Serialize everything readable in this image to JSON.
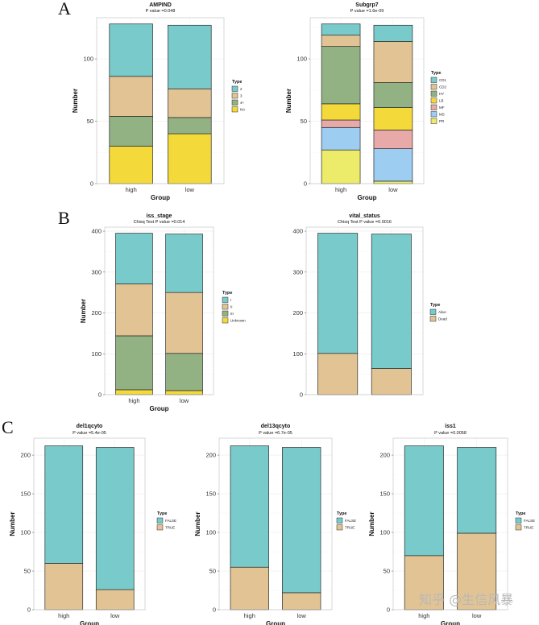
{
  "panels": [
    "A",
    "B",
    "C"
  ],
  "colors": {
    "teal": "#79CBCB",
    "tan": "#E2C494",
    "sage": "#93B283",
    "yellow": "#F3D93A",
    "pink": "#E8A9A9",
    "blue": "#9ECDF2",
    "lightyellow": "#ECEB6A",
    "grid": "#ececec",
    "border": "#444444"
  },
  "watermark": "知乎 @生信风暴",
  "chart_data": [
    {
      "type": "bar",
      "stacked": true,
      "panel": "A",
      "title": "AMPIND",
      "subtitle": "P value =0.048",
      "xlabel": "Group",
      "ylabel": "Number",
      "categories": [
        "high",
        "low"
      ],
      "ylim": [
        0,
        133
      ],
      "yticks": [
        0,
        50,
        100
      ],
      "legend_title": "Type",
      "series": [
        {
          "name": "NA",
          "color": "#F3D93A",
          "values": [
            30,
            40
          ]
        },
        {
          "name": "4+",
          "color": "#93B283",
          "values": [
            24,
            13
          ]
        },
        {
          "name": "3",
          "color": "#E2C494",
          "values": [
            32,
            23
          ]
        },
        {
          "name": "2",
          "color": "#79CBCB",
          "values": [
            42,
            51
          ]
        }
      ]
    },
    {
      "type": "bar",
      "stacked": true,
      "panel": "A",
      "title": "Subgrp7",
      "subtitle": "P value =1.6e-09",
      "xlabel": "Group",
      "ylabel": "Number",
      "categories": [
        "high",
        "low"
      ],
      "ylim": [
        0,
        133
      ],
      "yticks": [
        0,
        50,
        100
      ],
      "legend_title": "Type",
      "series": [
        {
          "name": "PR",
          "color": "#ECEB6A",
          "values": [
            27,
            2
          ]
        },
        {
          "name": "MS",
          "color": "#9ECDF2",
          "values": [
            18,
            26
          ]
        },
        {
          "name": "MF",
          "color": "#E8A9A9",
          "values": [
            6,
            15
          ]
        },
        {
          "name": "LB",
          "color": "#F3D93A",
          "values": [
            13,
            18
          ]
        },
        {
          "name": "HY",
          "color": "#93B283",
          "values": [
            46,
            20
          ]
        },
        {
          "name": "CD2",
          "color": "#E2C494",
          "values": [
            9,
            33
          ]
        },
        {
          "name": "CD1",
          "color": "#79CBCB",
          "values": [
            9,
            13
          ]
        }
      ]
    },
    {
      "type": "bar",
      "stacked": true,
      "panel": "B",
      "title": "iss_stage",
      "subtitle": "Chisq Test P value =0.014",
      "xlabel": "Group",
      "ylabel": "Number",
      "categories": [
        "high",
        "low"
      ],
      "ylim": [
        0,
        410
      ],
      "yticks": [
        0,
        100,
        200,
        300,
        400
      ],
      "legend_title": "Type",
      "series": [
        {
          "name": "Unknown",
          "color": "#F3D93A",
          "values": [
            12,
            10
          ]
        },
        {
          "name": "III",
          "color": "#93B283",
          "values": [
            132,
            91
          ]
        },
        {
          "name": "II",
          "color": "#E2C494",
          "values": [
            127,
            149
          ]
        },
        {
          "name": "I",
          "color": "#79CBCB",
          "values": [
            124,
            143
          ]
        }
      ]
    },
    {
      "type": "bar",
      "stacked": true,
      "panel": "B",
      "title": "vital_status",
      "subtitle": "Chisq Test P value =0.0016",
      "xlabel": "",
      "ylabel": "",
      "categories": [
        "",
        ""
      ],
      "ylim": [
        0,
        410
      ],
      "yticks": [
        0,
        100,
        200,
        300,
        400
      ],
      "legend_title": "Type",
      "series": [
        {
          "name": "Dead",
          "color": "#E2C494",
          "values": [
            101,
            64
          ]
        },
        {
          "name": "Alive",
          "color": "#79CBCB",
          "values": [
            294,
            329
          ]
        }
      ]
    },
    {
      "type": "bar",
      "stacked": true,
      "panel": "C",
      "title": "del1qcyto",
      "subtitle": "P value =5.4e-05",
      "xlabel": "Group",
      "ylabel": "Number",
      "categories": [
        "high",
        "low"
      ],
      "ylim": [
        0,
        222
      ],
      "yticks": [
        0,
        50,
        100,
        150,
        200
      ],
      "legend_title": "Type",
      "series": [
        {
          "name": "TRUE",
          "color": "#E2C494",
          "values": [
            60,
            26
          ]
        },
        {
          "name": "FALSE",
          "color": "#79CBCB",
          "values": [
            152,
            184
          ]
        }
      ]
    },
    {
      "type": "bar",
      "stacked": true,
      "panel": "C",
      "title": "del13qcyto",
      "subtitle": "P value =6.7e-05",
      "xlabel": "Group",
      "ylabel": "Number",
      "categories": [
        "high",
        "low"
      ],
      "ylim": [
        0,
        222
      ],
      "yticks": [
        0,
        50,
        100,
        150,
        200
      ],
      "legend_title": "Type",
      "series": [
        {
          "name": "TRUE",
          "color": "#E2C494",
          "values": [
            55,
            22
          ]
        },
        {
          "name": "FALSE",
          "color": "#79CBCB",
          "values": [
            157,
            188
          ]
        }
      ]
    },
    {
      "type": "bar",
      "stacked": true,
      "panel": "C",
      "title": "iss1",
      "subtitle": "P value =0.0058",
      "xlabel": "Group",
      "ylabel": "Number",
      "categories": [
        "high",
        "low"
      ],
      "ylim": [
        0,
        222
      ],
      "yticks": [
        0,
        50,
        100,
        150,
        200
      ],
      "legend_title": "Type",
      "series": [
        {
          "name": "TRUE",
          "color": "#E2C494",
          "values": [
            70,
            99
          ]
        },
        {
          "name": "FALSE",
          "color": "#79CBCB",
          "values": [
            142,
            111
          ]
        }
      ]
    }
  ]
}
